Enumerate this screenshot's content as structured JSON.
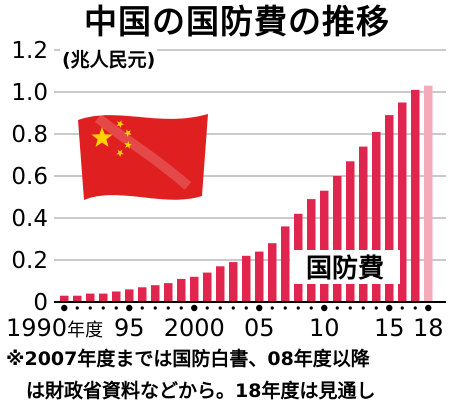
{
  "title": "中国の国防費の推移",
  "unit_label": "(兆人民元)",
  "notes": {
    "line1": "※2007年度までは国防白書、08年度以降",
    "line2": "は財政省資料などから。18年度は見通し"
  },
  "colors": {
    "bar": "#e0254e",
    "bar_last": "#f4aab8",
    "grid": "#b8b8b8",
    "flag_red": "#e02020",
    "flag_star": "#ffd200"
  },
  "icons": [
    "china-flag-icon"
  ],
  "chart_data": {
    "type": "bar",
    "title": "中国の国防費の推移",
    "ylabel": "(兆人民元)",
    "xlabel": "",
    "ylim": [
      0,
      1.2
    ],
    "grid": true,
    "y_ticks": [
      "0",
      "0.2",
      "0.4",
      "0.6",
      "0.8",
      "1.0",
      "1.2"
    ],
    "x_tick_labels": [
      {
        "year": 1990,
        "label": "1990年度"
      },
      {
        "year": 1995,
        "label": "95"
      },
      {
        "year": 2000,
        "label": "2000"
      },
      {
        "year": 2005,
        "label": "05"
      },
      {
        "year": 2010,
        "label": "10"
      },
      {
        "year": 2015,
        "label": "15"
      },
      {
        "year": 2018,
        "label": "18"
      }
    ],
    "annotation": "国防費",
    "categories": [
      1990,
      1991,
      1992,
      1993,
      1994,
      1995,
      1996,
      1997,
      1998,
      1999,
      2000,
      2001,
      2002,
      2003,
      2004,
      2005,
      2006,
      2007,
      2008,
      2009,
      2010,
      2011,
      2012,
      2013,
      2014,
      2015,
      2016,
      2017,
      2018
    ],
    "values": [
      0.03,
      0.03,
      0.04,
      0.04,
      0.05,
      0.06,
      0.07,
      0.08,
      0.09,
      0.11,
      0.12,
      0.14,
      0.17,
      0.19,
      0.22,
      0.24,
      0.28,
      0.36,
      0.42,
      0.49,
      0.53,
      0.6,
      0.67,
      0.74,
      0.81,
      0.89,
      0.95,
      1.01,
      1.03
    ],
    "estimate_last": true
  }
}
